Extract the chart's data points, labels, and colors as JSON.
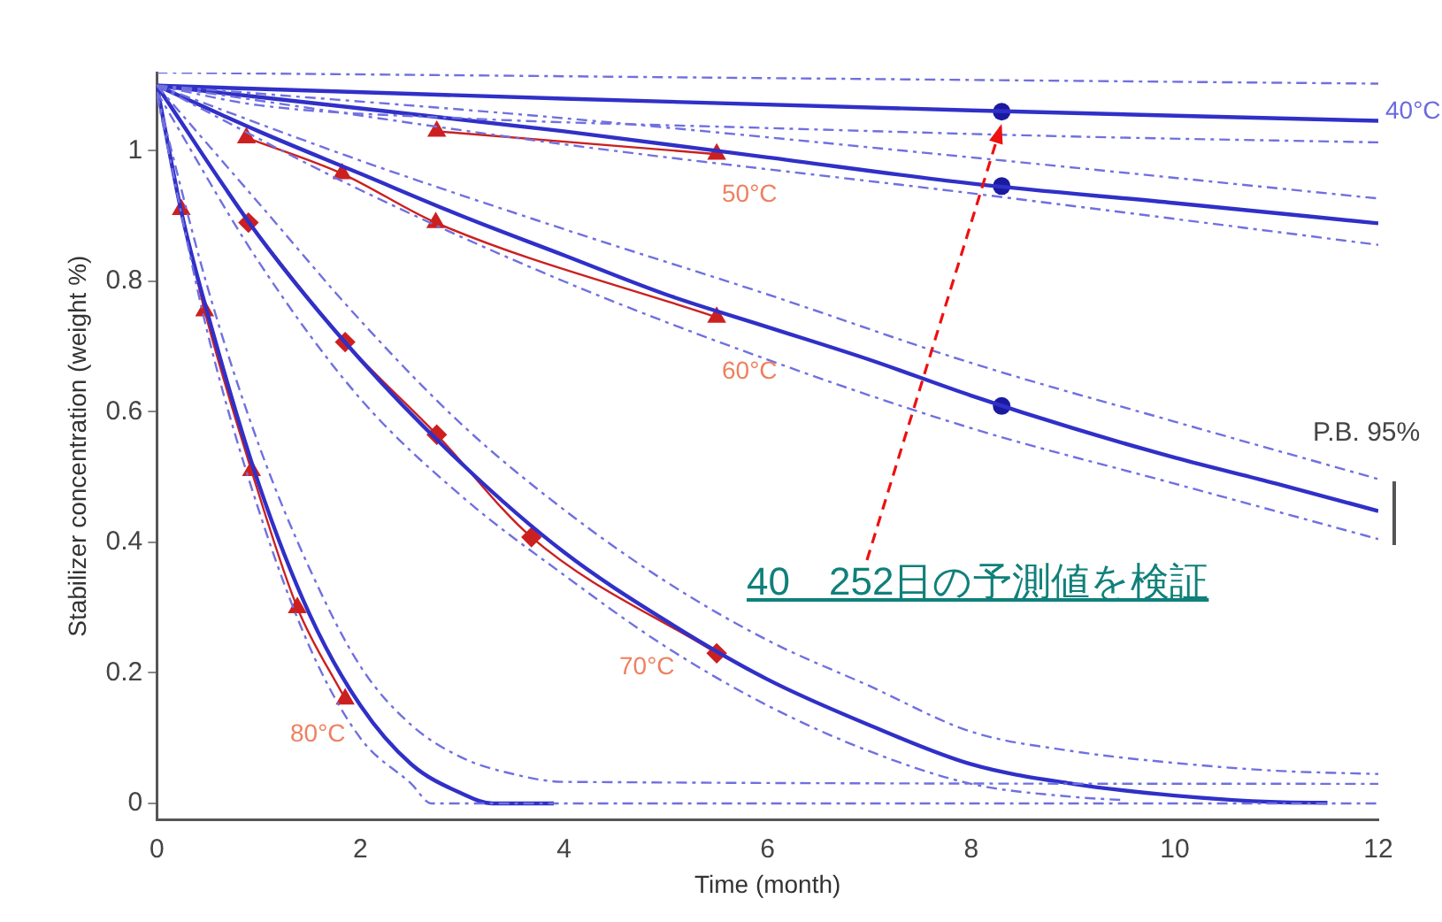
{
  "chart_data": {
    "type": "line",
    "xlabel": "Time (month)",
    "ylabel": "Stabilizer concentration (weight %)",
    "xlim": [
      0,
      12
    ],
    "xticks": [
      0,
      2,
      4,
      6,
      8,
      10,
      12
    ],
    "ylim": [
      -0.025,
      1.12
    ],
    "yticks": [
      0,
      0.2,
      0.4,
      0.6,
      0.8,
      1
    ],
    "grid": false,
    "legend": false,
    "series": [
      {
        "color": "#7070e0",
        "line_style": "dashed",
        "marker": "none",
        "x": [
          0,
          12
        ],
        "values": [
          1.12,
          1.103
        ]
      },
      {
        "color": "#7070e0",
        "line_style": "dashed",
        "marker": "none",
        "x": [
          0,
          1,
          3,
          6,
          9,
          12
        ],
        "values": [
          1.1,
          1.07,
          1.05,
          1.035,
          1.022,
          1.013
        ]
      },
      {
        "color": "#7070e0",
        "line_style": "dashed",
        "marker": "none",
        "x": [
          0,
          4,
          8,
          12
        ],
        "values": [
          1.1,
          1.05,
          0.99,
          0.927
        ]
      },
      {
        "color": "#7070e0",
        "line_style": "dashed",
        "marker": "none",
        "x": [
          0,
          4,
          8,
          12
        ],
        "values": [
          1.1,
          1.01,
          0.935,
          0.856
        ]
      },
      {
        "color": "#7070e0",
        "line_style": "dashed",
        "marker": "none",
        "x": [
          0,
          2,
          4,
          6,
          8,
          10,
          12
        ],
        "values": [
          1.1,
          0.985,
          0.88,
          0.78,
          0.675,
          0.585,
          0.497
        ]
      },
      {
        "color": "#7070e0",
        "line_style": "dashed",
        "marker": "none",
        "x": [
          0,
          2,
          4,
          6,
          8,
          10,
          12
        ],
        "values": [
          1.1,
          0.94,
          0.8,
          0.68,
          0.575,
          0.49,
          0.405
        ]
      },
      {
        "color": "#7070e0",
        "line_style": "dashed",
        "marker": "none",
        "x": [
          0,
          1,
          2,
          3,
          4,
          5,
          6,
          7,
          8,
          9,
          10,
          11,
          12
        ],
        "values": [
          1.1,
          0.92,
          0.74,
          0.58,
          0.45,
          0.34,
          0.25,
          0.18,
          0.11,
          0.08,
          0.062,
          0.05,
          0.045
        ]
      },
      {
        "color": "#7070e0",
        "line_style": "dashed",
        "marker": "none",
        "x": [
          0,
          1,
          2,
          3,
          4,
          5,
          6,
          7,
          8,
          9,
          9.5
        ],
        "values": [
          1.09,
          0.83,
          0.62,
          0.47,
          0.35,
          0.24,
          0.15,
          0.08,
          0.03,
          0.01,
          0.005
        ]
      },
      {
        "color": "#7070e0",
        "line_style": "dashed",
        "marker": "none",
        "x": [
          0,
          0.5,
          1,
          1.5,
          2,
          2.5,
          3,
          3.5,
          4,
          12
        ],
        "values": [
          1.088,
          0.79,
          0.55,
          0.36,
          0.21,
          0.12,
          0.07,
          0.045,
          0.033,
          0.03
        ]
      },
      {
        "color": "#7070e0",
        "line_style": "dashed",
        "marker": "none",
        "x": [
          0,
          0.5,
          1,
          1.5,
          2,
          2.5,
          2.7,
          12
        ],
        "values": [
          1.085,
          0.72,
          0.45,
          0.24,
          0.1,
          0.03,
          0,
          0
        ]
      },
      {
        "color": "#3030c8",
        "line_style": "solid",
        "marker": "none",
        "x": [
          0,
          4,
          8,
          12
        ],
        "values": [
          1.1,
          1.08,
          1.062,
          1.046
        ]
      },
      {
        "color": "#3030c8",
        "line_style": "solid",
        "marker": "none",
        "x": [
          0,
          2,
          4,
          6,
          8,
          10,
          12
        ],
        "values": [
          1.1,
          1.065,
          1.03,
          0.99,
          0.95,
          0.92,
          0.889
        ]
      },
      {
        "color": "#3030c8",
        "line_style": "solid",
        "marker": "none",
        "x": [
          0,
          1,
          2,
          3,
          4,
          5,
          6,
          7,
          8,
          9,
          10,
          11,
          12
        ],
        "values": [
          1.1,
          1.03,
          0.965,
          0.9,
          0.84,
          0.78,
          0.73,
          0.68,
          0.625,
          0.575,
          0.53,
          0.49,
          0.448
        ]
      },
      {
        "color": "#3030c8",
        "line_style": "solid",
        "marker": "none",
        "x": [
          0,
          1,
          2,
          3,
          4,
          5,
          6,
          7,
          8,
          9,
          10,
          11,
          11.5
        ],
        "values": [
          1.1,
          0.87,
          0.68,
          0.52,
          0.385,
          0.28,
          0.19,
          0.12,
          0.06,
          0.03,
          0.012,
          0.002,
          0.001
        ]
      },
      {
        "color": "#3030c8",
        "line_style": "solid",
        "marker": "none",
        "x": [
          0,
          0.25,
          0.5,
          1,
          1.5,
          2,
          2.5,
          3,
          3.3,
          3.9
        ],
        "values": [
          1.1,
          0.9,
          0.75,
          0.49,
          0.29,
          0.15,
          0.06,
          0.015,
          0,
          0
        ]
      },
      {
        "color": "#cc2020",
        "line_style": "solid",
        "marker": "triangle",
        "x": [
          2.75,
          5.5
        ],
        "values": [
          1.03,
          0.995
        ]
      },
      {
        "color": "#cc2020",
        "line_style": "solid",
        "marker": "triangle",
        "x": [
          0.88,
          1.82,
          2.74,
          5.5
        ],
        "values": [
          1.02,
          0.965,
          0.89,
          0.745
        ]
      },
      {
        "color": "#cc2020",
        "line_style": "solid",
        "marker": "diamond",
        "x": [
          0.9,
          1.85,
          2.75,
          3.68,
          5.5
        ],
        "values": [
          0.89,
          0.707,
          0.565,
          0.408,
          0.23
        ]
      },
      {
        "color": "#cc2020",
        "line_style": "solid",
        "marker": "triangle",
        "x": [
          0.24,
          0.47,
          0.93,
          1.38,
          1.85
        ],
        "values": [
          0.91,
          0.755,
          0.51,
          0.3,
          0.16
        ]
      },
      {
        "type": "scatter",
        "color": "#1a1aa0",
        "marker": "circle",
        "x": [
          8.3,
          8.3,
          8.3
        ],
        "values": [
          1.06,
          0.946,
          0.609
        ]
      }
    ],
    "annotations": [
      "40°C",
      "50°C",
      "60°C",
      "70°C",
      "80°C",
      "P.B. 95%",
      {
        "text": "40　252日の予測値を検証",
        "x": 8.3,
        "y": 1.04
      }
    ]
  }
}
